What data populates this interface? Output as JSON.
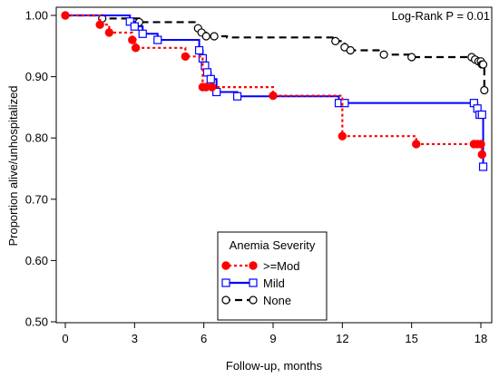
{
  "chart_data": {
    "type": "line",
    "step": true,
    "title": "",
    "xlabel": "Follow-up, months",
    "ylabel": "Proportion alive/unhospitalized",
    "xlim": [
      0,
      18
    ],
    "ylim": [
      0.5,
      1.0
    ],
    "x_ticks": [
      0,
      3,
      6,
      9,
      12,
      15,
      18
    ],
    "x_tick_labels": [
      "0",
      "3",
      "6",
      "9",
      "12",
      "15",
      "18"
    ],
    "y_ticks": [
      0.5,
      0.6,
      0.7,
      0.8,
      0.9,
      1.0
    ],
    "y_tick_labels": [
      "0.50",
      "0.60",
      "0.70",
      "0.80",
      "0.90",
      "1.00"
    ],
    "grid": false,
    "annotation": "Log-Rank P = 0.01",
    "legend": {
      "title": "Anemia Severity",
      "placement": "bottom-center"
    },
    "series": [
      {
        "name": ">=Mod",
        "color": "#ff0000",
        "line_style": "dotted",
        "marker": "filled-circle",
        "points": [
          [
            0,
            1.0
          ],
          [
            1.5,
            0.985
          ],
          [
            1.9,
            0.972
          ],
          [
            2.9,
            0.96
          ],
          [
            3.05,
            0.947
          ],
          [
            5.2,
            0.933
          ],
          [
            5.95,
            0.883
          ],
          [
            6.1,
            0.883
          ],
          [
            6.35,
            0.883
          ],
          [
            9.0,
            0.869
          ],
          [
            12.0,
            0.803
          ],
          [
            15.2,
            0.79
          ],
          [
            17.7,
            0.79
          ],
          [
            17.85,
            0.79
          ],
          [
            18.0,
            0.79
          ],
          [
            18.05,
            0.773
          ],
          [
            18.1,
            0.773
          ]
        ],
        "markers_x": [
          0,
          1.5,
          1.9,
          2.9,
          3.05,
          5.2,
          5.95,
          6.1,
          6.35,
          9.0,
          12.0,
          15.2,
          17.7,
          17.85,
          18.0,
          18.05
        ]
      },
      {
        "name": "Mild",
        "color": "#0000ff",
        "line_style": "solid",
        "marker": "open-square",
        "points": [
          [
            0,
            1.0
          ],
          [
            2.8,
            0.99
          ],
          [
            3.0,
            0.982
          ],
          [
            3.35,
            0.97
          ],
          [
            4.0,
            0.96
          ],
          [
            5.8,
            0.943
          ],
          [
            5.95,
            0.93
          ],
          [
            6.05,
            0.918
          ],
          [
            6.15,
            0.907
          ],
          [
            6.3,
            0.896
          ],
          [
            6.55,
            0.875
          ],
          [
            7.45,
            0.868
          ],
          [
            11.85,
            0.857
          ],
          [
            17.7,
            0.857
          ],
          [
            17.85,
            0.848
          ],
          [
            17.95,
            0.838
          ],
          [
            18.1,
            0.753
          ]
        ],
        "markers_x": [
          2.8,
          3.0,
          3.35,
          4.0,
          5.8,
          5.95,
          6.05,
          6.15,
          6.3,
          6.55,
          7.45,
          11.85,
          12.1,
          17.7,
          17.85,
          17.95,
          18.05,
          18.1
        ]
      },
      {
        "name": "None",
        "color": "#000000",
        "line_style": "dashed",
        "marker": "open-circle",
        "points": [
          [
            0,
            1.0
          ],
          [
            1.6,
            0.995
          ],
          [
            3.2,
            0.989
          ],
          [
            5.75,
            0.979
          ],
          [
            5.9,
            0.972
          ],
          [
            6.1,
            0.966
          ],
          [
            6.45,
            0.966
          ],
          [
            7.0,
            0.964
          ],
          [
            11.7,
            0.958
          ],
          [
            12.1,
            0.948
          ],
          [
            12.35,
            0.943
          ],
          [
            13.8,
            0.936
          ],
          [
            15.0,
            0.932
          ],
          [
            17.6,
            0.932
          ],
          [
            17.75,
            0.928
          ],
          [
            17.9,
            0.925
          ],
          [
            18.05,
            0.92
          ],
          [
            18.1,
            0.92
          ],
          [
            18.15,
            0.878
          ]
        ],
        "markers_x": [
          1.6,
          3.2,
          5.75,
          5.9,
          6.1,
          6.45,
          11.7,
          12.1,
          12.35,
          13.8,
          15.0,
          17.6,
          17.75,
          17.9,
          18.0,
          18.05,
          18.1,
          18.15
        ]
      }
    ]
  }
}
